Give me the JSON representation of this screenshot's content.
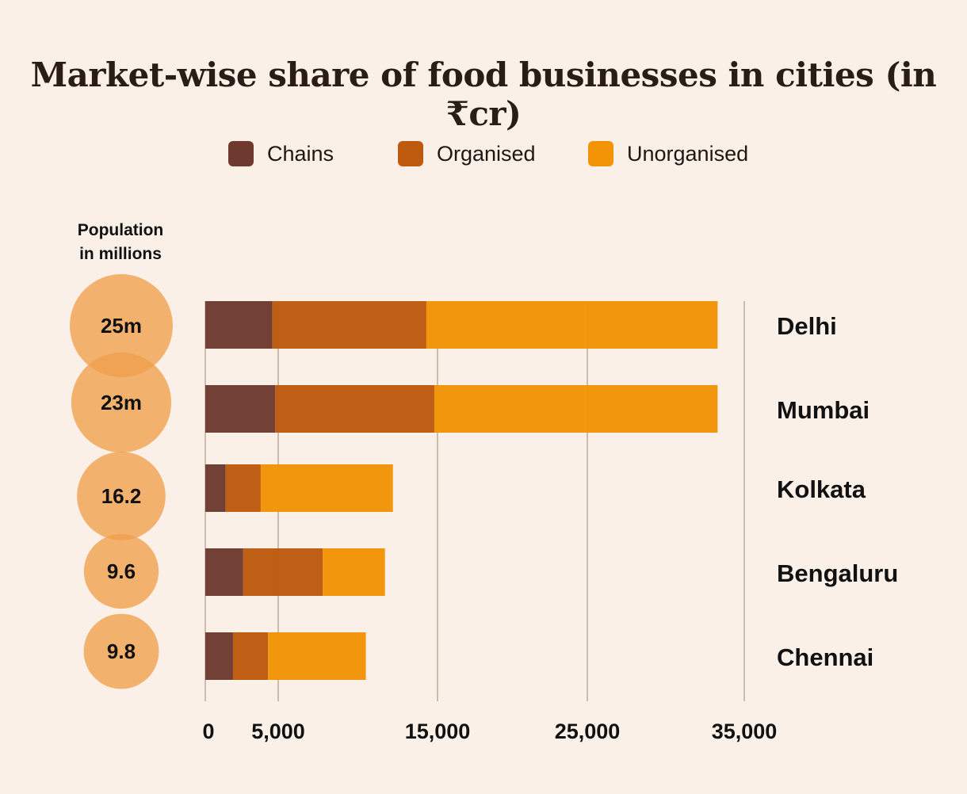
{
  "chart_data": {
    "type": "bar",
    "orientation": "horizontal",
    "stacked": true,
    "title": "Market-wise share of food businesses in cities (in ₹cr)",
    "categories": [
      "Delhi",
      "Mumbai",
      "Kolkata",
      "Bengaluru",
      "Chennai"
    ],
    "series": [
      {
        "name": "Chains",
        "color": "#6e3a2f",
        "values": [
          4600,
          4800,
          1400,
          2600,
          1900
        ]
      },
      {
        "name": "Organised",
        "color": "#bd5a0d",
        "values": [
          9700,
          10000,
          2400,
          5200,
          2400
        ]
      },
      {
        "name": "Unorganised",
        "color": "#f29306",
        "values": [
          19000,
          18500,
          8400,
          3900,
          6200
        ]
      }
    ],
    "population_header": "Population in millions",
    "population_header_lines": [
      "Population",
      "in millions"
    ],
    "population_values": [
      25,
      23,
      16.2,
      9.6,
      9.8
    ],
    "population_labels": [
      "25m",
      "23m",
      "16.2",
      "9.6",
      "9.8"
    ],
    "x_ticks": [
      0,
      5000,
      15000,
      25000,
      35000
    ],
    "x_tick_labels": [
      "0",
      "5,000",
      "15,000",
      "25,000",
      "35,000"
    ],
    "xlim": [
      0,
      35000
    ],
    "grid": true,
    "legend_position": "top-center"
  }
}
